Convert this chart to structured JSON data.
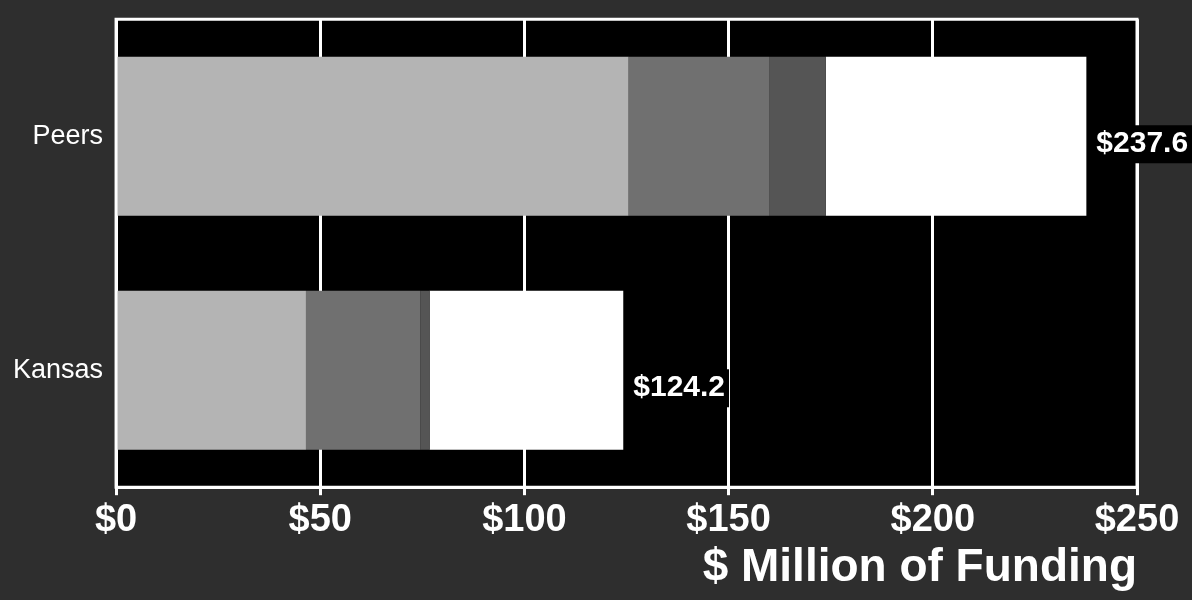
{
  "chart_data": {
    "type": "bar",
    "orientation": "horizontal",
    "stacked": true,
    "xlabel": "$ Million of Funding",
    "categories": [
      "Peers",
      "Kansas"
    ],
    "series": [
      {
        "color": "#b4b4b4",
        "values": [
          125.5,
          46.5
        ]
      },
      {
        "color": "#707070",
        "values": [
          34.4,
          28.0
        ]
      },
      {
        "color": "#555555",
        "values": [
          13.9,
          2.3
        ]
      },
      {
        "color": "#ffffff",
        "values": [
          63.8,
          47.4
        ]
      }
    ],
    "totals": [
      "$237.6",
      "$124.2"
    ],
    "xlim": [
      0,
      250
    ],
    "xticks": [
      {
        "value": 0,
        "label": "$0"
      },
      {
        "value": 50,
        "label": "$50"
      },
      {
        "value": 100,
        "label": "$100"
      },
      {
        "value": 150,
        "label": "$150"
      },
      {
        "value": 200,
        "label": "$200"
      },
      {
        "value": 250,
        "label": "$250"
      }
    ],
    "grid": "x",
    "legend": false
  }
}
